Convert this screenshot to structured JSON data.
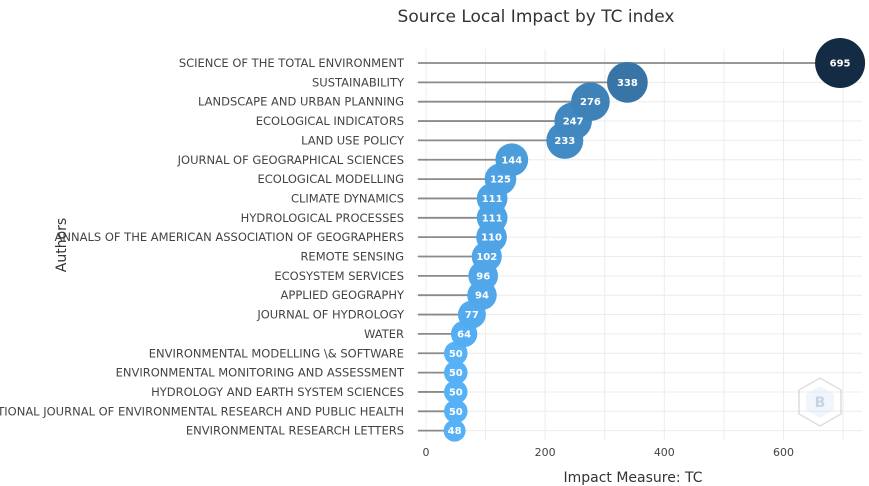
{
  "chart_data": {
    "type": "scatter",
    "title": "Source Local Impact by TC index",
    "xlabel": "Impact Measure: TC",
    "ylabel": "Authors",
    "xlim": [
      0,
      720
    ],
    "xticks": [
      0,
      200,
      400,
      600
    ],
    "grid": true,
    "categories": [
      "SCIENCE OF THE TOTAL ENVIRONMENT",
      "SUSTAINABILITY",
      "LANDSCAPE AND URBAN PLANNING",
      "ECOLOGICAL INDICATORS",
      "LAND USE POLICY",
      "JOURNAL OF GEOGRAPHICAL SCIENCES",
      "ECOLOGICAL MODELLING",
      "CLIMATE DYNAMICS",
      "HYDROLOGICAL PROCESSES",
      "ANNALS OF THE AMERICAN ASSOCIATION OF GEOGRAPHERS",
      "REMOTE SENSING",
      "ECOSYSTEM SERVICES",
      "APPLIED GEOGRAPHY",
      "JOURNAL OF HYDROLOGY",
      "WATER",
      "ENVIRONMENTAL MODELLING \\& SOFTWARE",
      "ENVIRONMENTAL MONITORING AND ASSESSMENT",
      "HYDROLOGY AND EARTH SYSTEM SCIENCES",
      "INTERNATIONAL JOURNAL OF ENVIRONMENTAL RESEARCH AND PUBLIC HEALTH",
      "ENVIRONMENTAL RESEARCH LETTERS"
    ],
    "values": [
      695,
      338,
      276,
      247,
      233,
      144,
      125,
      111,
      111,
      110,
      102,
      96,
      94,
      77,
      64,
      50,
      50,
      50,
      50,
      48
    ],
    "colors": {
      "low": "#56b1f7",
      "high": "#132b43",
      "stem": "#8a8a8a"
    }
  }
}
